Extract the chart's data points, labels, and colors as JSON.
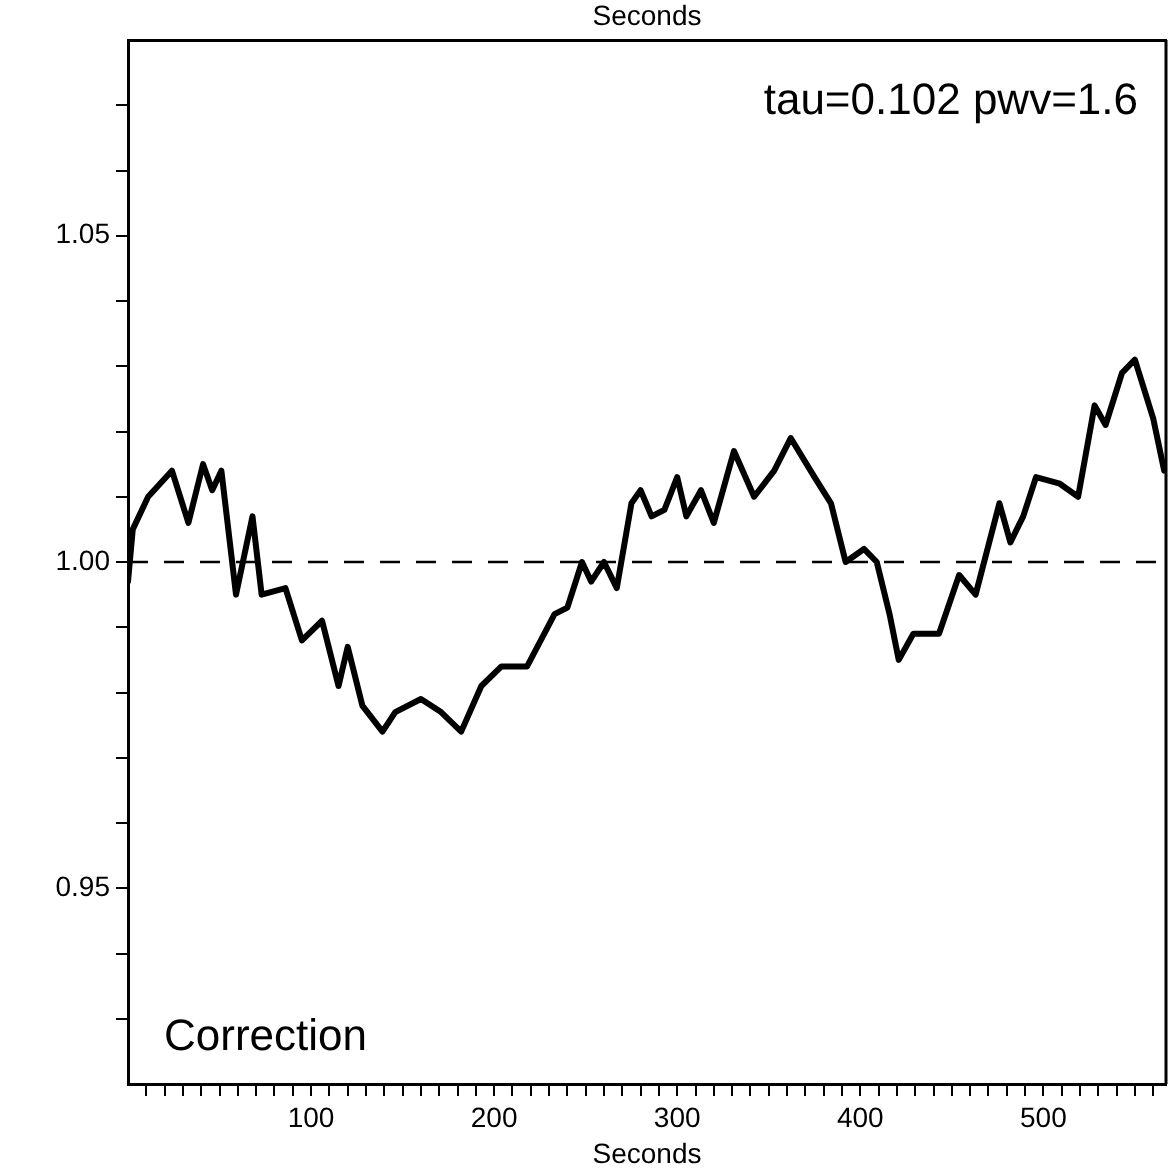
{
  "chart_data": {
    "type": "line",
    "xlabel": "Seconds",
    "x2label": "Seconds",
    "xlim": [
      0,
      567
    ],
    "xticks": [
      {
        "value": 10,
        "label": null
      },
      {
        "value": 20,
        "label": null
      },
      {
        "value": 30,
        "label": null
      },
      {
        "value": 40,
        "label": null
      },
      {
        "value": 50,
        "label": null
      },
      {
        "value": 60,
        "label": null
      },
      {
        "value": 70,
        "label": null
      },
      {
        "value": 80,
        "label": null
      },
      {
        "value": 90,
        "label": null
      },
      100,
      {
        "value": 110,
        "label": null
      },
      {
        "value": 120,
        "label": null
      },
      {
        "value": 130,
        "label": null
      },
      {
        "value": 140,
        "label": null
      },
      {
        "value": 150,
        "label": null
      },
      {
        "value": 160,
        "label": null
      },
      {
        "value": 170,
        "label": null
      },
      {
        "value": 180,
        "label": null
      },
      {
        "value": 190,
        "label": null
      },
      200,
      {
        "value": 210,
        "label": null
      },
      {
        "value": 220,
        "label": null
      },
      {
        "value": 230,
        "label": null
      },
      {
        "value": 240,
        "label": null
      },
      {
        "value": 250,
        "label": null
      },
      {
        "value": 260,
        "label": null
      },
      {
        "value": 270,
        "label": null
      },
      {
        "value": 280,
        "label": null
      },
      {
        "value": 290,
        "label": null
      },
      300,
      {
        "value": 310,
        "label": null
      },
      {
        "value": 320,
        "label": null
      },
      {
        "value": 330,
        "label": null
      },
      {
        "value": 340,
        "label": null
      },
      {
        "value": 350,
        "label": null
      },
      {
        "value": 360,
        "label": null
      },
      {
        "value": 370,
        "label": null
      },
      {
        "value": 380,
        "label": null
      },
      {
        "value": 390,
        "label": null
      },
      400,
      {
        "value": 410,
        "label": null
      },
      {
        "value": 420,
        "label": null
      },
      {
        "value": 430,
        "label": null
      },
      {
        "value": 440,
        "label": null
      },
      {
        "value": 450,
        "label": null
      },
      {
        "value": 460,
        "label": null
      },
      {
        "value": 470,
        "label": null
      },
      {
        "value": 480,
        "label": null
      },
      {
        "value": 490,
        "label": null
      },
      500,
      {
        "value": 510,
        "label": null
      },
      {
        "value": 520,
        "label": null
      },
      {
        "value": 530,
        "label": null
      },
      {
        "value": 540,
        "label": null
      },
      {
        "value": 550,
        "label": null
      },
      {
        "value": 560,
        "label": null
      }
    ],
    "ylim": [
      0.92,
      1.08
    ],
    "yticks": [
      {
        "value": 0.93,
        "label": null
      },
      {
        "value": 0.94,
        "label": null
      },
      {
        "value": 0.95,
        "label": "0.95"
      },
      {
        "value": 0.96,
        "label": null
      },
      {
        "value": 0.97,
        "label": null
      },
      {
        "value": 0.98,
        "label": null
      },
      {
        "value": 0.99,
        "label": null
      },
      {
        "value": 1,
        "label": "1.00"
      },
      {
        "value": 1.01,
        "label": null
      },
      {
        "value": 1.02,
        "label": null
      },
      {
        "value": 1.03,
        "label": null
      },
      {
        "value": 1.04,
        "label": null
      },
      {
        "value": 1.05,
        "label": "1.05"
      },
      {
        "value": 1.06,
        "label": null
      },
      {
        "value": 1.07,
        "label": null
      }
    ],
    "x": [
      0,
      2.6,
      11,
      24,
      33,
      41,
      46,
      51,
      59,
      68,
      73,
      86,
      95,
      106,
      115,
      120,
      128,
      139,
      146,
      160,
      171,
      182,
      193,
      204,
      218,
      233,
      240,
      248,
      253,
      260,
      267,
      275,
      280,
      286,
      293,
      300,
      305,
      313,
      320,
      331,
      342,
      353,
      362,
      375,
      384,
      392,
      402,
      409,
      416,
      421,
      429,
      443,
      454,
      463,
      476,
      482,
      489,
      496,
      509,
      519,
      528,
      534,
      543,
      550,
      560,
      566
    ],
    "series": [
      {
        "color": "#000000",
        "values": [
          0.997,
          1.005,
          1.01,
          1.014,
          1.006,
          1.015,
          1.011,
          1.014,
          0.995,
          1.007,
          0.995,
          0.996,
          0.988,
          0.991,
          0.981,
          0.987,
          0.978,
          0.974,
          0.977,
          0.979,
          0.977,
          0.974,
          0.981,
          0.984,
          0.984,
          0.992,
          0.993,
          1.0,
          0.997,
          1.0,
          0.996,
          1.009,
          1.011,
          1.007,
          1.008,
          1.013,
          1.007,
          1.011,
          1.006,
          1.017,
          1.01,
          1.014,
          1.019,
          1.013,
          1.009,
          1.0,
          1.002,
          1.0,
          0.992,
          0.985,
          0.989,
          0.989,
          0.998,
          0.995,
          1.009,
          1.003,
          1.007,
          1.013,
          1.012,
          1.01,
          1.024,
          1.021,
          1.029,
          1.031,
          1.022,
          1.014
        ]
      }
    ],
    "ref_lines": [
      {
        "axis": "y",
        "value": 1,
        "color": "#000000",
        "line_style": "dashed"
      }
    ],
    "annotations": [
      "tau=0.102 pwv=1.6",
      "Correction"
    ],
    "grid": false,
    "legend": false,
    "marker": "none",
    "line_style": "solid"
  }
}
